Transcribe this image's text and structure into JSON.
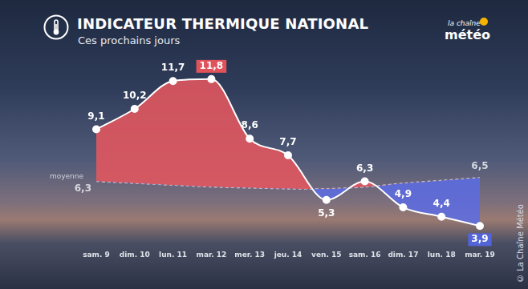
{
  "chart_data": {
    "type": "line",
    "title": "INDICATEUR THERMIQUE NATIONAL",
    "subtitle": "Ces prochains jours",
    "annotations": {
      "logo": [
        "la chaîne",
        "météo"
      ],
      "credit": "© La Chaîne Météo"
    },
    "categories": [
      "sam. 9",
      "dim. 10",
      "lun. 11",
      "mar. 12",
      "mer. 13",
      "jeu. 14",
      "ven. 15",
      "sam. 16",
      "dim. 17",
      "lun. 18",
      "mar. 19"
    ],
    "series": [
      {
        "color": "#ffffff",
        "marker": "circle",
        "line_style": "solid",
        "values": [
          9.1,
          10.2,
          11.7,
          11.8,
          8.6,
          7.7,
          5.3,
          6.3,
          4.9,
          4.4,
          3.9
        ],
        "value_labels": [
          "9,1",
          "10,2",
          "11,7",
          "11,8",
          "8,6",
          "7,7",
          "5,3",
          "6,3",
          "4,9",
          "4,4",
          "3,9"
        ]
      },
      {
        "name": "moyenne",
        "color": "#c8cbd3",
        "marker": "none",
        "line_style": "dashed",
        "values": [
          6.3,
          6.2,
          6.1,
          6.0,
          5.95,
          5.9,
          5.9,
          6.0,
          6.2,
          6.35,
          6.5
        ],
        "value_labels": [
          "6,3",
          null,
          null,
          null,
          null,
          null,
          null,
          null,
          null,
          null,
          "6,5"
        ]
      }
    ],
    "ylim": [
      3,
      13
    ],
    "grid": false,
    "tick_labels": "x",
    "data_labels": true
  }
}
